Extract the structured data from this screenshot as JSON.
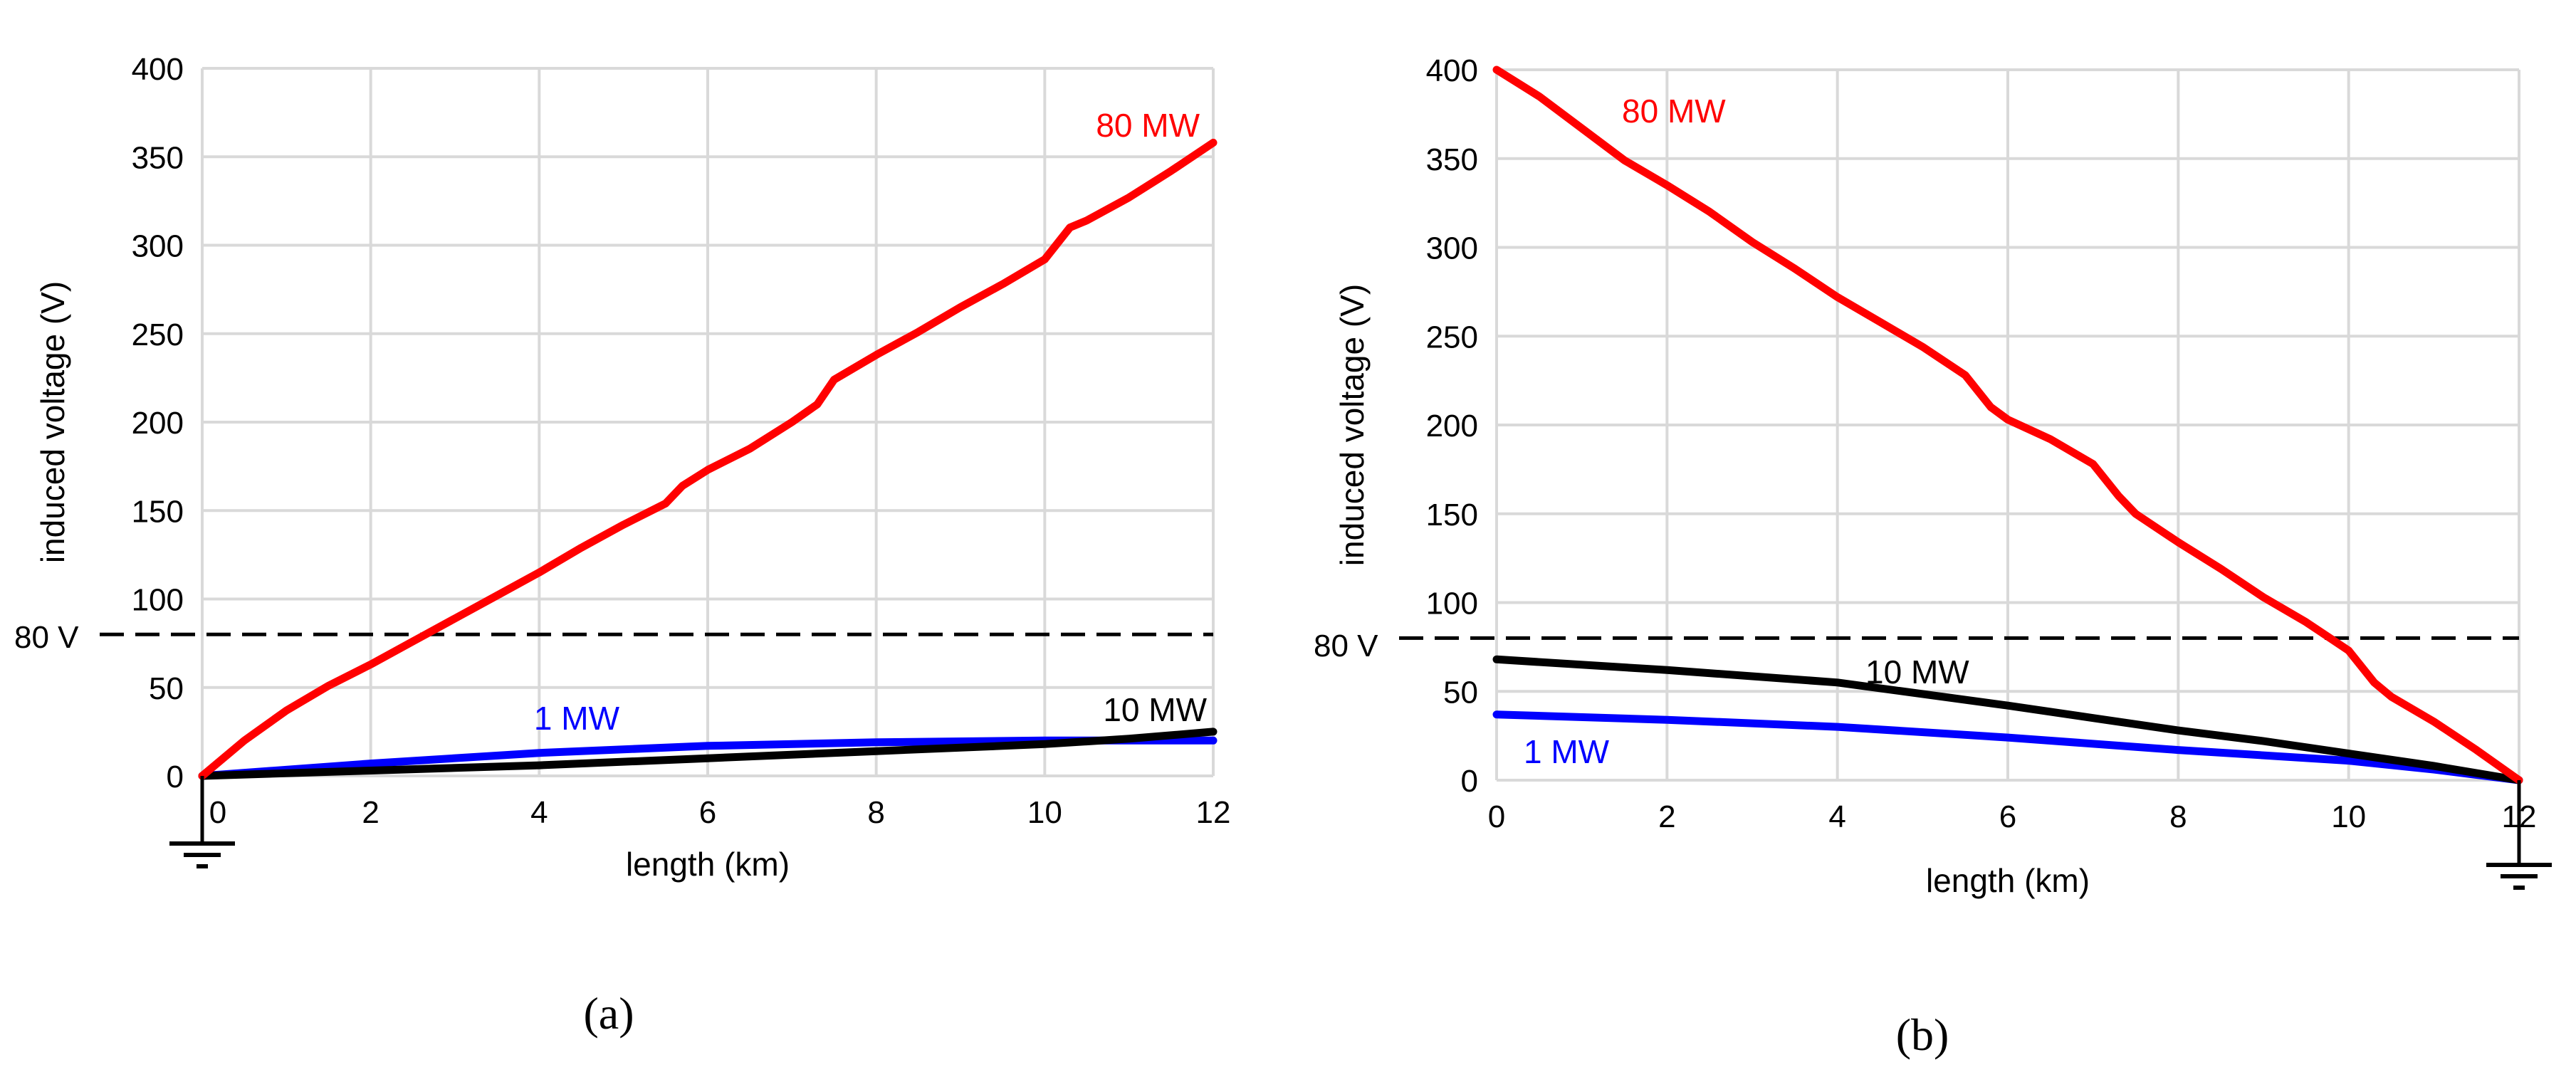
{
  "chart_data": [
    {
      "type": "line",
      "panel_label": "(a)",
      "xlabel": "length (km)",
      "ylabel": "induced voltage (V)",
      "xlim": [
        0,
        12
      ],
      "ylim": [
        0,
        400
      ],
      "x_ticks": [
        "0",
        "2",
        "4",
        "6",
        "8",
        "10",
        "12"
      ],
      "y_ticks": [
        "0",
        "50",
        "100",
        "150",
        "200",
        "250",
        "300",
        "350",
        "400"
      ],
      "threshold": {
        "value": 80,
        "label": "80 V"
      },
      "ground_symbol_at": "left",
      "series": [
        {
          "name": "80 MW",
          "color": "#ff0000",
          "x": [
            0,
            0.5,
            1,
            1.5,
            2,
            2.5,
            3,
            3.5,
            4,
            4.5,
            5,
            5.5,
            5.7,
            6,
            6.5,
            7,
            7.3,
            7.5,
            8,
            8.5,
            9,
            9.5,
            10,
            10.3,
            10.5,
            11,
            11.5,
            12
          ],
          "y": [
            0,
            20,
            37,
            51,
            63,
            76,
            89,
            102,
            115,
            129,
            142,
            154,
            164,
            173,
            185,
            200,
            210,
            224,
            238,
            251,
            265,
            278,
            292,
            310,
            314,
            327,
            342,
            358
          ]
        },
        {
          "name": "10 MW",
          "color": "#000000",
          "x": [
            0,
            2,
            4,
            6,
            8,
            10,
            11,
            12
          ],
          "y": [
            0,
            3,
            6,
            10,
            14,
            18,
            21,
            25
          ]
        },
        {
          "name": "1 MW",
          "color": "#0000ff",
          "x": [
            0,
            2,
            4,
            6,
            8,
            10,
            12
          ],
          "y": [
            0,
            7,
            13,
            17,
            19,
            20,
            20
          ]
        }
      ]
    },
    {
      "type": "line",
      "panel_label": "(b)",
      "xlabel": "length (km)",
      "ylabel": "induced voltage (V)",
      "xlim": [
        0,
        12
      ],
      "ylim": [
        0,
        400
      ],
      "x_ticks": [
        "0",
        "2",
        "4",
        "6",
        "8",
        "10",
        "12"
      ],
      "y_ticks": [
        "0",
        "50",
        "100",
        "150",
        "200",
        "250",
        "300",
        "350",
        "400"
      ],
      "threshold": {
        "value": 80,
        "label": "80 V"
      },
      "ground_symbol_at": "right",
      "series": [
        {
          "name": "80 MW",
          "color": "#ff0000",
          "x": [
            0,
            0.5,
            1,
            1.5,
            2,
            2.5,
            3,
            3.5,
            4,
            4.5,
            5,
            5.5,
            5.8,
            6,
            6.5,
            7,
            7.3,
            7.5,
            8,
            8.5,
            9,
            9.5,
            10,
            10.3,
            10.5,
            11,
            11.5,
            12
          ],
          "y": [
            400,
            385,
            367,
            349,
            335,
            320,
            303,
            288,
            272,
            258,
            244,
            228,
            210,
            203,
            192,
            178,
            160,
            150,
            134,
            119,
            103,
            89,
            73,
            55,
            47,
            33,
            17,
            0
          ]
        },
        {
          "name": "10 MW",
          "color": "#000000",
          "x": [
            0,
            2,
            4,
            6,
            7,
            8,
            9,
            10,
            11,
            12
          ],
          "y": [
            68,
            62,
            55,
            42,
            35,
            28,
            22,
            15,
            8,
            0
          ]
        },
        {
          "name": "1 MW",
          "color": "#0000ff",
          "x": [
            0,
            2,
            4,
            6,
            8,
            10,
            11,
            12
          ],
          "y": [
            37,
            34,
            30,
            24,
            17,
            11,
            6,
            0
          ]
        }
      ]
    }
  ]
}
